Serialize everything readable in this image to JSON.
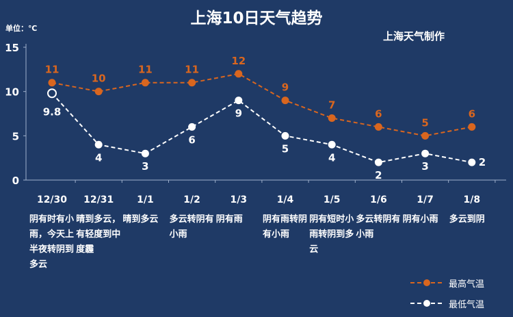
{
  "chart_data": {
    "type": "line",
    "title": "上海10日天气趋势",
    "source": "上海天气制作",
    "ylabel": "单位：℃",
    "ylim": [
      0,
      15
    ],
    "yticks": [
      0,
      5,
      10,
      15
    ],
    "categories": [
      "12/30",
      "12/31",
      "1/1",
      "1/2",
      "1/3",
      "1/4",
      "1/5",
      "1/6",
      "1/7",
      "1/8"
    ],
    "descriptions": [
      "阴有时有小雨，今天上半夜转阴到多云",
      "晴到多云，有轻度到中度霾",
      "晴到多云",
      "多云转阴有小雨",
      "阴有雨",
      "阴有雨转阴有小雨",
      "阴有短时小雨转阴到多云",
      "多云转阴有小雨",
      "阴有小雨",
      "多云到阴"
    ],
    "series": [
      {
        "name": "最高气温",
        "values": [
          11,
          10,
          11,
          11,
          12,
          9,
          7,
          6,
          5,
          6
        ],
        "labels": [
          "11",
          "10",
          "11",
          "11",
          "12",
          "9",
          "7",
          "6",
          "5",
          "6"
        ],
        "color": "#d9661f"
      },
      {
        "name": "最低气温",
        "values": [
          9.8,
          4,
          3,
          6,
          9,
          5,
          4,
          2,
          3,
          2
        ],
        "labels": [
          "9.8",
          "4",
          "3",
          "6",
          "9",
          "5",
          "4",
          "2",
          "3",
          "2"
        ],
        "color": "#ffffff"
      }
    ],
    "legend": "bottom-right",
    "grid": false
  }
}
